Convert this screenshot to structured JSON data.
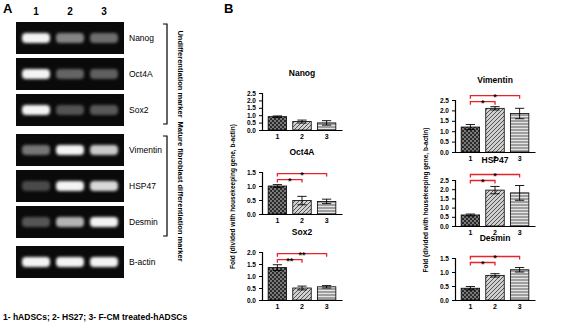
{
  "figure": {
    "panel_labels": [
      "A",
      "B"
    ],
    "lanes": [
      "1",
      "2",
      "3"
    ],
    "gel_rows": [
      "Nanog",
      "Oct4A",
      "Sox2",
      "Vimentin",
      "HSP47",
      "Desmin",
      "B-actin"
    ],
    "groups": [
      {
        "label": "Undifferentiation marker",
        "rows": [
          "Nanog",
          "Oct4A",
          "Sox2"
        ]
      },
      {
        "label": "Mature fibroblast differentiation marker",
        "rows": [
          "Vimentin",
          "HSP47",
          "Desmin"
        ]
      }
    ],
    "caption": "1- hADSCs; 2- HS27; 3- F-CM treated-hADSCs"
  },
  "chart_data": [
    {
      "type": "bar",
      "title": "Nanog",
      "y_label": "Fold (divided with housekeeping gene, b-actin)",
      "categories": [
        "1",
        "2",
        "3"
      ],
      "values": [
        0.9,
        0.57,
        0.48
      ],
      "errors": [
        0.05,
        0.1,
        0.15
      ],
      "colors": [
        "#7a7a7a",
        "#d0d0d0",
        "#e4e4e4"
      ],
      "ylim": [
        0,
        2.5
      ],
      "yticks": [
        {
          "value": 0,
          "label": "0.0"
        },
        {
          "value": 0.5,
          "label": "0.5"
        },
        {
          "value": 1,
          "label": "1.0"
        },
        {
          "value": 1.5,
          "label": "1.5"
        },
        {
          "value": 2,
          "label": "2.0"
        },
        {
          "value": 2.5,
          "label": "2.5"
        }
      ],
      "annotations": []
    },
    {
      "type": "bar",
      "title": "Oct4A",
      "categories": [
        "1",
        "2",
        "3"
      ],
      "values": [
        1.0,
        0.48,
        0.45
      ],
      "errors": [
        0.05,
        0.15,
        0.08
      ],
      "colors": [
        "#7a7a7a",
        "#d0d0d0",
        "#e4e4e4"
      ],
      "ylim": [
        0,
        1.5
      ],
      "yticks": [
        {
          "value": 0,
          "label": "0.0"
        },
        {
          "value": 0.5,
          "label": "0.5"
        },
        {
          "value": 1,
          "label": "1.0"
        },
        {
          "value": 1.5,
          "label": "1.5"
        }
      ],
      "annotations": [
        {
          "between": [
            "1",
            "2"
          ],
          "text": "*"
        },
        {
          "between": [
            "1",
            "3"
          ],
          "text": "*"
        }
      ]
    },
    {
      "type": "bar",
      "title": "Sox2",
      "categories": [
        "1",
        "2",
        "3"
      ],
      "values": [
        1.35,
        0.5,
        0.55
      ],
      "errors": [
        0.12,
        0.08,
        0.05
      ],
      "colors": [
        "#7a7a7a",
        "#d0d0d0",
        "#e4e4e4"
      ],
      "ylim": [
        0,
        2
      ],
      "yticks": [
        {
          "value": 0,
          "label": "0.0"
        },
        {
          "value": 0.5,
          "label": "0.5"
        },
        {
          "value": 1,
          "label": "1.0"
        },
        {
          "value": 1.5,
          "label": "1.5"
        },
        {
          "value": 2,
          "label": "2.0"
        }
      ],
      "annotations": [
        {
          "between": [
            "1",
            "2"
          ],
          "text": "**"
        },
        {
          "between": [
            "1",
            "3"
          ],
          "text": "**"
        }
      ]
    },
    {
      "type": "bar",
      "title": "Vimentin",
      "y_label": "Fold (divided with housekeeping gene, b-actin)",
      "categories": [
        "1",
        "2",
        "3"
      ],
      "values": [
        1.2,
        2.1,
        1.85
      ],
      "errors": [
        0.12,
        0.08,
        0.25
      ],
      "colors": [
        "#7a7a7a",
        "#d0d0d0",
        "#e4e4e4"
      ],
      "ylim": [
        0,
        2.5
      ],
      "yticks": [
        {
          "value": 0,
          "label": "0.0"
        },
        {
          "value": 0.5,
          "label": "0.5"
        },
        {
          "value": 1,
          "label": "1.0"
        },
        {
          "value": 1.5,
          "label": "1.5"
        },
        {
          "value": 2,
          "label": "2.0"
        },
        {
          "value": 2.5,
          "label": "2.5"
        }
      ],
      "annotations": [
        {
          "between": [
            "1",
            "2"
          ],
          "text": "*"
        },
        {
          "between": [
            "1",
            "3"
          ],
          "text": "*"
        }
      ]
    },
    {
      "type": "bar",
      "title": "HSP47",
      "categories": [
        "1",
        "2",
        "3"
      ],
      "values": [
        0.6,
        1.95,
        1.8
      ],
      "errors": [
        0.05,
        0.2,
        0.4
      ],
      "colors": [
        "#7a7a7a",
        "#d0d0d0",
        "#e4e4e4"
      ],
      "ylim": [
        0,
        2.5
      ],
      "yticks": [
        {
          "value": 0,
          "label": "0.0"
        },
        {
          "value": 0.5,
          "label": "0.5"
        },
        {
          "value": 1,
          "label": "1.0"
        },
        {
          "value": 1.5,
          "label": "1.5"
        },
        {
          "value": 2,
          "label": "2.0"
        },
        {
          "value": 2.5,
          "label": "2.5"
        }
      ],
      "annotations": [
        {
          "between": [
            "1",
            "2"
          ],
          "text": "*"
        },
        {
          "between": [
            "1",
            "3"
          ],
          "text": "*"
        }
      ]
    },
    {
      "type": "bar",
      "title": "Desmin",
      "categories": [
        "1",
        "2",
        "3"
      ],
      "values": [
        0.42,
        0.88,
        1.08
      ],
      "errors": [
        0.06,
        0.06,
        0.08
      ],
      "colors": [
        "#7a7a7a",
        "#d0d0d0",
        "#e4e4e4"
      ],
      "ylim": [
        0,
        1.5
      ],
      "yticks": [
        {
          "value": 0,
          "label": "0.0"
        },
        {
          "value": 0.5,
          "label": "0.5"
        },
        {
          "value": 1,
          "label": "1.0"
        },
        {
          "value": 1.5,
          "label": "1.5"
        }
      ],
      "annotations": [
        {
          "between": [
            "1",
            "2"
          ],
          "text": "*"
        },
        {
          "between": [
            "1",
            "3"
          ],
          "text": "*"
        }
      ]
    }
  ]
}
